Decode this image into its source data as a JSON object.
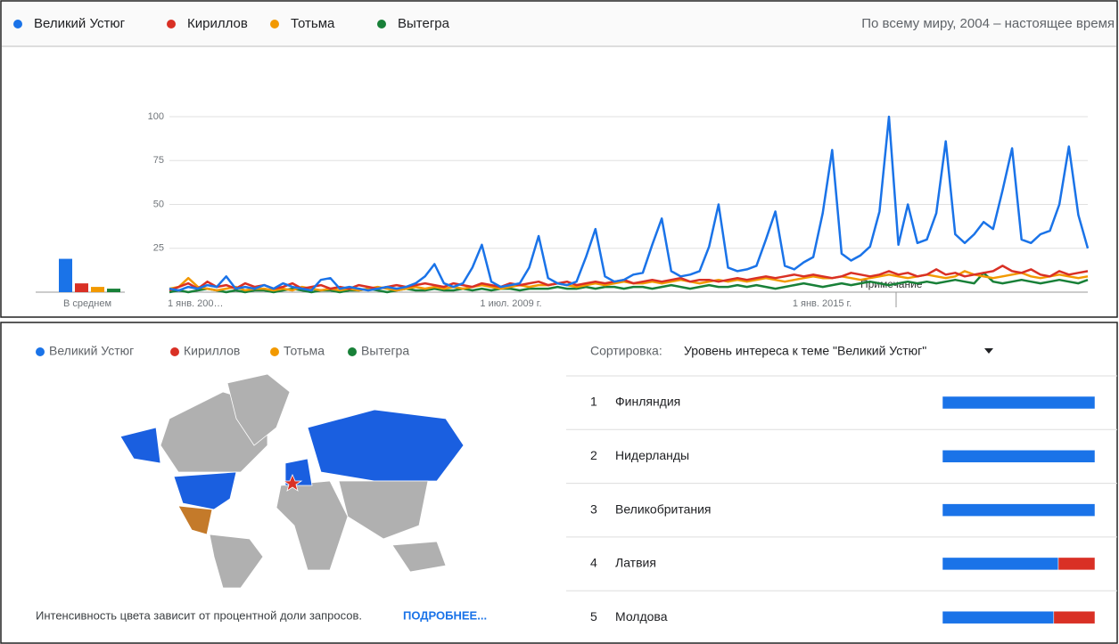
{
  "header": {
    "region": "По всему миру, 2004 – настоящее время"
  },
  "chart_data": {
    "type": "line",
    "categories": [
      "1 янв. 200…",
      null,
      null,
      null,
      null,
      null,
      null,
      null,
      null,
      null,
      null,
      null,
      null,
      null,
      null,
      null,
      null,
      null,
      null,
      null,
      null,
      null,
      null,
      null,
      null,
      null,
      null,
      null,
      null,
      null,
      null,
      null,
      null,
      "1 июл. 2009 г.",
      null,
      null,
      null,
      null,
      null,
      null,
      null,
      null,
      null,
      null,
      null,
      null,
      null,
      null,
      null,
      null,
      null,
      null,
      null,
      null,
      null,
      null,
      null,
      null,
      null,
      null,
      null,
      null,
      null,
      null,
      null,
      null,
      "1 янв. 2015 г.",
      null,
      null,
      null,
      null,
      null,
      null,
      null,
      null,
      null,
      null,
      null,
      null,
      null,
      null,
      null,
      null,
      null,
      null,
      null,
      null,
      null,
      null,
      null,
      null,
      null,
      null,
      null,
      null,
      null,
      null,
      null
    ],
    "ylim": [
      0,
      100
    ],
    "yticks": [
      25,
      50,
      75,
      100
    ],
    "grid": true,
    "series": [
      {
        "name": "Великий Устюг",
        "color": "#1a73e8",
        "values": [
          2,
          1,
          3,
          2,
          4,
          3,
          9,
          2,
          3,
          2,
          4,
          2,
          5,
          3,
          2,
          1,
          7,
          8,
          2,
          3,
          2,
          1,
          2,
          3,
          2,
          3,
          5,
          9,
          16,
          5,
          3,
          5,
          14,
          27,
          6,
          3,
          4,
          5,
          14,
          32,
          8,
          5,
          4,
          6,
          20,
          36,
          9,
          6,
          7,
          10,
          11,
          27,
          42,
          12,
          9,
          10,
          12,
          26,
          50,
          14,
          12,
          13,
          15,
          30,
          46,
          15,
          13,
          17,
          20,
          45,
          81,
          22,
          18,
          21,
          26,
          46,
          100,
          27,
          50,
          28,
          30,
          45,
          86,
          33,
          28,
          33,
          40,
          36,
          58,
          82,
          30,
          28,
          33,
          35,
          50,
          83,
          44,
          25
        ]
      },
      {
        "name": "Кириллов",
        "color": "#d93025",
        "values": [
          1,
          3,
          5,
          2,
          6,
          3,
          4,
          2,
          5,
          3,
          4,
          2,
          3,
          5,
          2,
          3,
          4,
          2,
          3,
          2,
          4,
          3,
          2,
          3,
          4,
          3,
          4,
          5,
          4,
          3,
          5,
          4,
          3,
          5,
          4,
          3,
          5,
          4,
          5,
          6,
          4,
          5,
          6,
          4,
          5,
          6,
          5,
          6,
          7,
          5,
          6,
          7,
          6,
          7,
          8,
          6,
          7,
          7,
          6,
          7,
          8,
          7,
          8,
          9,
          8,
          9,
          10,
          9,
          10,
          9,
          8,
          9,
          11,
          10,
          9,
          10,
          12,
          10,
          11,
          9,
          10,
          13,
          10,
          11,
          9,
          10,
          11,
          12,
          15,
          12,
          11,
          13,
          10,
          9,
          12,
          10,
          11,
          12
        ]
      },
      {
        "name": "Тотьма",
        "color": "#f29900",
        "values": [
          2,
          3,
          8,
          3,
          2,
          1,
          2,
          3,
          1,
          2,
          2,
          1,
          2,
          1,
          3,
          2,
          1,
          2,
          1,
          2,
          1,
          2,
          3,
          2,
          1,
          2,
          3,
          2,
          3,
          2,
          3,
          2,
          3,
          4,
          3,
          2,
          3,
          4,
          3,
          4,
          4,
          5,
          4,
          3,
          4,
          5,
          4,
          5,
          6,
          5,
          5,
          6,
          5,
          6,
          7,
          6,
          5,
          6,
          7,
          6,
          7,
          6,
          7,
          8,
          7,
          6,
          7,
          8,
          9,
          8,
          8,
          9,
          8,
          7,
          8,
          9,
          10,
          9,
          8,
          9,
          10,
          9,
          8,
          9,
          12,
          10,
          9,
          8,
          9,
          10,
          11,
          9,
          8,
          9,
          10,
          9,
          8,
          9
        ]
      },
      {
        "name": "Вытегра",
        "color": "#188038",
        "values": [
          0,
          1,
          0,
          1,
          2,
          1,
          0,
          1,
          0,
          1,
          1,
          0,
          1,
          2,
          1,
          0,
          1,
          1,
          0,
          1,
          1,
          2,
          1,
          0,
          1,
          2,
          1,
          1,
          2,
          1,
          1,
          2,
          1,
          2,
          1,
          2,
          2,
          1,
          2,
          2,
          2,
          3,
          2,
          2,
          3,
          2,
          3,
          3,
          2,
          3,
          3,
          2,
          3,
          4,
          3,
          2,
          3,
          4,
          3,
          3,
          4,
          3,
          4,
          3,
          2,
          3,
          4,
          5,
          4,
          3,
          4,
          5,
          4,
          5,
          6,
          5,
          4,
          5,
          6,
          5,
          6,
          5,
          6,
          7,
          6,
          5,
          11,
          6,
          5,
          6,
          7,
          6,
          5,
          6,
          7,
          6,
          5,
          7
        ]
      }
    ],
    "average": {
      "label": "В среднем",
      "values": [
        19,
        5,
        3,
        2
      ]
    },
    "annotation": "Примечание"
  },
  "map": {
    "note": "Интенсивность цвета зависит от процентной доли запросов.",
    "link": "ПОДРОБНЕЕ..."
  },
  "ranking": {
    "sort_label": "Сортировка:",
    "sort_value": "Уровень интереса к теме \"Великий Устюг\"",
    "rows": [
      {
        "rank": 1,
        "name": "Финляндия",
        "values": [
          100,
          0,
          0,
          0
        ]
      },
      {
        "rank": 2,
        "name": "Нидерланды",
        "values": [
          100,
          0,
          0,
          0
        ]
      },
      {
        "rank": 3,
        "name": "Великобритания",
        "values": [
          100,
          0,
          0,
          0
        ]
      },
      {
        "rank": 4,
        "name": "Латвия",
        "values": [
          76,
          24,
          0,
          0
        ]
      },
      {
        "rank": 5,
        "name": "Молдова",
        "values": [
          73,
          27,
          0,
          0
        ]
      }
    ]
  }
}
